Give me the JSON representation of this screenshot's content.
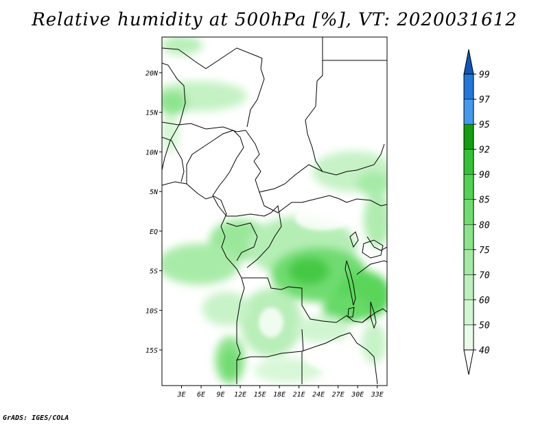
{
  "title": "Relative humidity at 500hPa [%], VT: 2020031612",
  "credit": "GrADS: IGES/COLA",
  "map": {
    "lat_labels": [
      "20N",
      "15N",
      "10N",
      "5N",
      "EQ",
      "5S",
      "10S",
      "15S"
    ],
    "lon_labels": [
      "3E",
      "6E",
      "9E",
      "12E",
      "15E",
      "18E",
      "21E",
      "24E",
      "27E",
      "30E",
      "33E"
    ],
    "lat_range": [
      -19.5,
      24.5
    ],
    "lon_range": [
      0,
      34.5
    ],
    "field": "relative humidity",
    "level": "500hPa",
    "units": "%",
    "valid_time": "2020031612"
  },
  "colorbar": {
    "levels": [
      "40",
      "50",
      "60",
      "70",
      "75",
      "80",
      "85",
      "90",
      "92",
      "95",
      "97",
      "99"
    ],
    "colors": [
      "#ffffff",
      "#e9fbe9",
      "#d2f6d2",
      "#bcf0bc",
      "#a3eba3",
      "#8ae48a",
      "#6fdc6f",
      "#52d252",
      "#33c233",
      "#119f11",
      "#4499ee",
      "#2277dd",
      "#1155bb"
    ]
  }
}
